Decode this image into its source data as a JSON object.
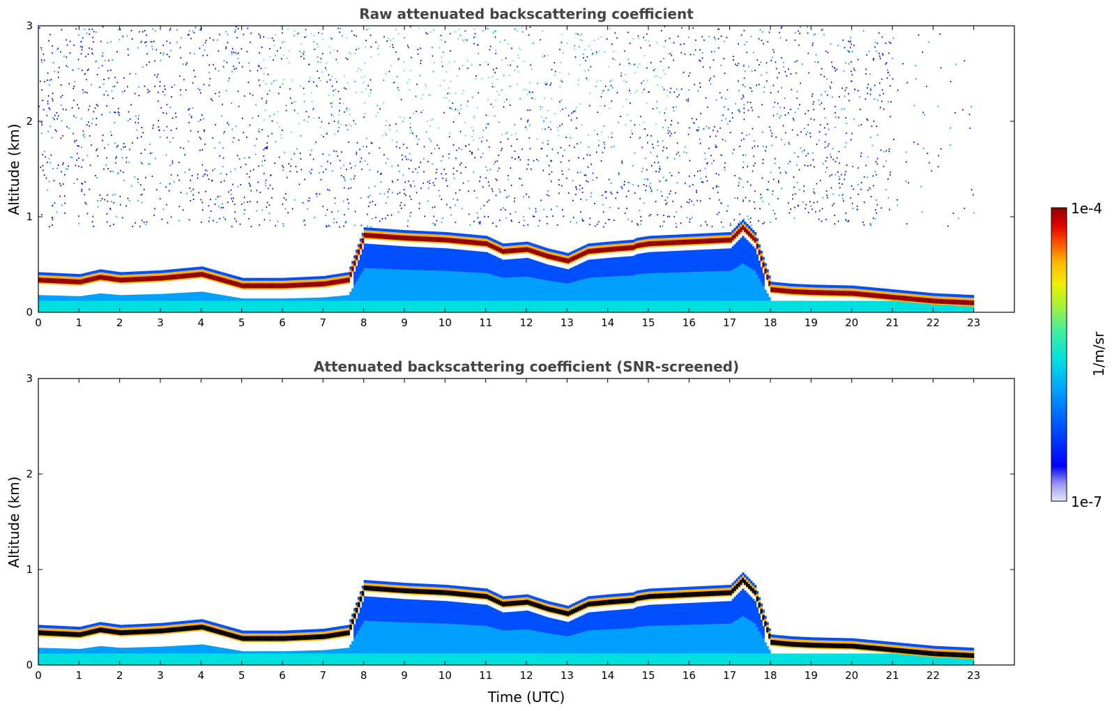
{
  "chart_data": [
    {
      "type": "heatmap",
      "title": "Raw attenuated backscattering coefficient",
      "xlabel": "",
      "ylabel": "Altitude (km)",
      "xlim": [
        0,
        24
      ],
      "ylim": [
        0,
        3
      ],
      "xticks": [
        "0",
        "1",
        "2",
        "3",
        "4",
        "5",
        "6",
        "7",
        "8",
        "9",
        "10",
        "11",
        "12",
        "13",
        "14",
        "15",
        "16",
        "17",
        "18",
        "19",
        "20",
        "21",
        "22",
        "23"
      ],
      "yticks": [
        "0",
        "1",
        "2",
        "3"
      ],
      "data_end_hour": 23,
      "screened": false,
      "layer_profile": {
        "hours": [
          0,
          1,
          1.5,
          2,
          3,
          4,
          4.5,
          5,
          6,
          7,
          7.6,
          8,
          9,
          10,
          11,
          11.4,
          12,
          12.5,
          13,
          13.5,
          14,
          14.6,
          14.7,
          15,
          16,
          17,
          17.3,
          17.6,
          18,
          18.5,
          19,
          20,
          21,
          22,
          23
        ],
        "top_km": [
          0.3,
          0.28,
          0.33,
          0.3,
          0.32,
          0.36,
          0.3,
          0.24,
          0.24,
          0.26,
          0.3,
          0.77,
          0.74,
          0.72,
          0.68,
          0.6,
          0.62,
          0.55,
          0.5,
          0.6,
          0.62,
          0.64,
          0.66,
          0.68,
          0.7,
          0.72,
          0.85,
          0.72,
          0.2,
          0.18,
          0.17,
          0.16,
          0.12,
          0.08,
          0.06
        ]
      },
      "colorbar": {
        "min_label": "1e-7",
        "max_label": "1e-4",
        "unit": "1/m/sr"
      }
    },
    {
      "type": "heatmap",
      "title": "Attenuated backscattering coefficient (SNR-screened)",
      "xlabel": "Time (UTC)",
      "ylabel": "Altitude (km)",
      "xlim": [
        0,
        24
      ],
      "ylim": [
        0,
        3
      ],
      "xticks": [
        "0",
        "1",
        "2",
        "3",
        "4",
        "5",
        "6",
        "7",
        "8",
        "9",
        "10",
        "11",
        "12",
        "13",
        "14",
        "15",
        "16",
        "17",
        "18",
        "19",
        "20",
        "21",
        "22",
        "23"
      ],
      "yticks": [
        "0",
        "1",
        "2",
        "3"
      ],
      "data_end_hour": 23,
      "screened": true,
      "colorbar": {
        "min_label": "1e-7",
        "max_label": "1e-4",
        "unit": "1/m/sr"
      }
    }
  ],
  "colorbar": {
    "max_label": "1e-4",
    "min_label": "1e-7",
    "unit_label": "1/m/sr",
    "colors": [
      "#e6e6f5",
      "#c8c8f0",
      "#9696f0",
      "#0000ff",
      "#0050ff",
      "#00a0ff",
      "#00e0e0",
      "#40f0a0",
      "#a0f040",
      "#f0f000",
      "#ffb000",
      "#ff5000",
      "#e00000",
      "#900000"
    ]
  }
}
